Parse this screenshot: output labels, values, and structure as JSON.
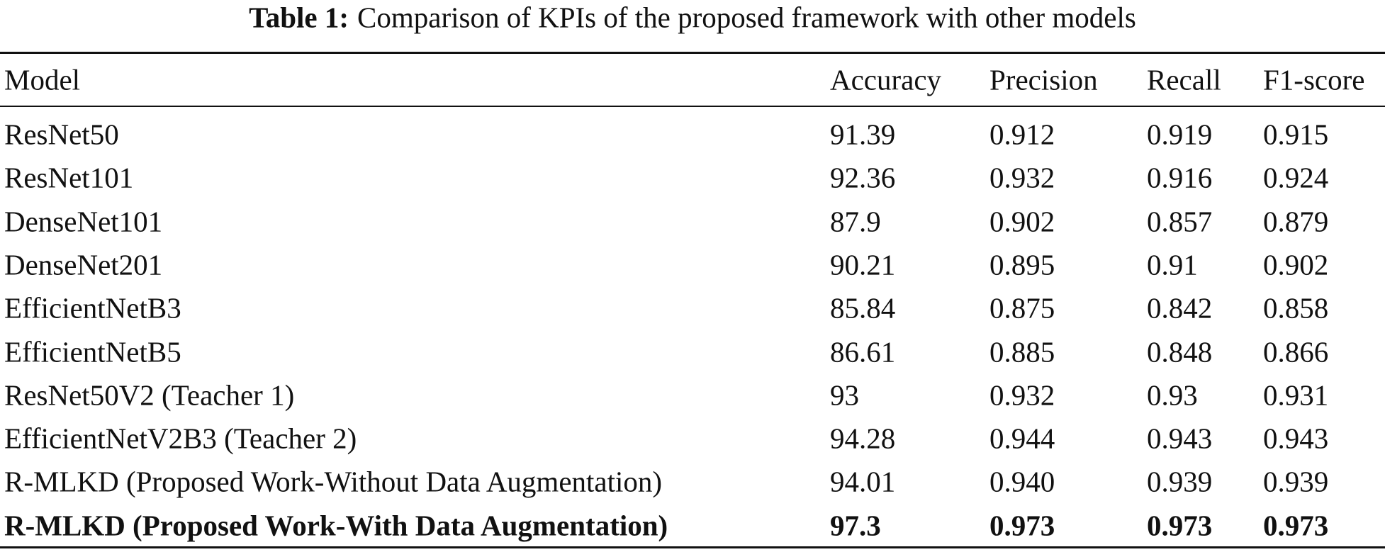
{
  "title": {
    "label": "Table 1:",
    "text": "Comparison of KPIs of the proposed framework with other models"
  },
  "table": {
    "header": [
      "Model",
      "Accuracy",
      "Precision",
      "Recall",
      "F1-score"
    ],
    "rows": [
      [
        "ResNet50",
        "91.39",
        "0.912",
        "0.919",
        "0.915"
      ],
      [
        "ResNet101",
        "92.36",
        "0.932",
        "0.916",
        "0.924"
      ],
      [
        "DenseNet101",
        "87.9",
        "0.902",
        "0.857",
        "0.879"
      ],
      [
        "DenseNet201",
        "90.21",
        "0.895",
        "0.91",
        "0.902"
      ],
      [
        "EfficientNetB3",
        "85.84",
        "0.875",
        "0.842",
        "0.858"
      ],
      [
        "EfficientNetB5",
        "86.61",
        "0.885",
        "0.848",
        "0.866"
      ],
      [
        "ResNet50V2 (Teacher 1)",
        "93",
        "0.932",
        "0.93",
        "0.931"
      ],
      [
        "EfficientNetV2B3 (Teacher 2)",
        "94.28",
        "0.944",
        "0.943",
        "0.943"
      ],
      [
        "R-MLKD (Proposed Work-Without Data Augmentation)",
        "94.01",
        "0.940",
        "0.939",
        "0.939"
      ],
      [
        "R-MLKD (Proposed Work-With Data Augmentation)",
        "97.3",
        "0.973",
        "0.973",
        "0.973"
      ]
    ]
  }
}
